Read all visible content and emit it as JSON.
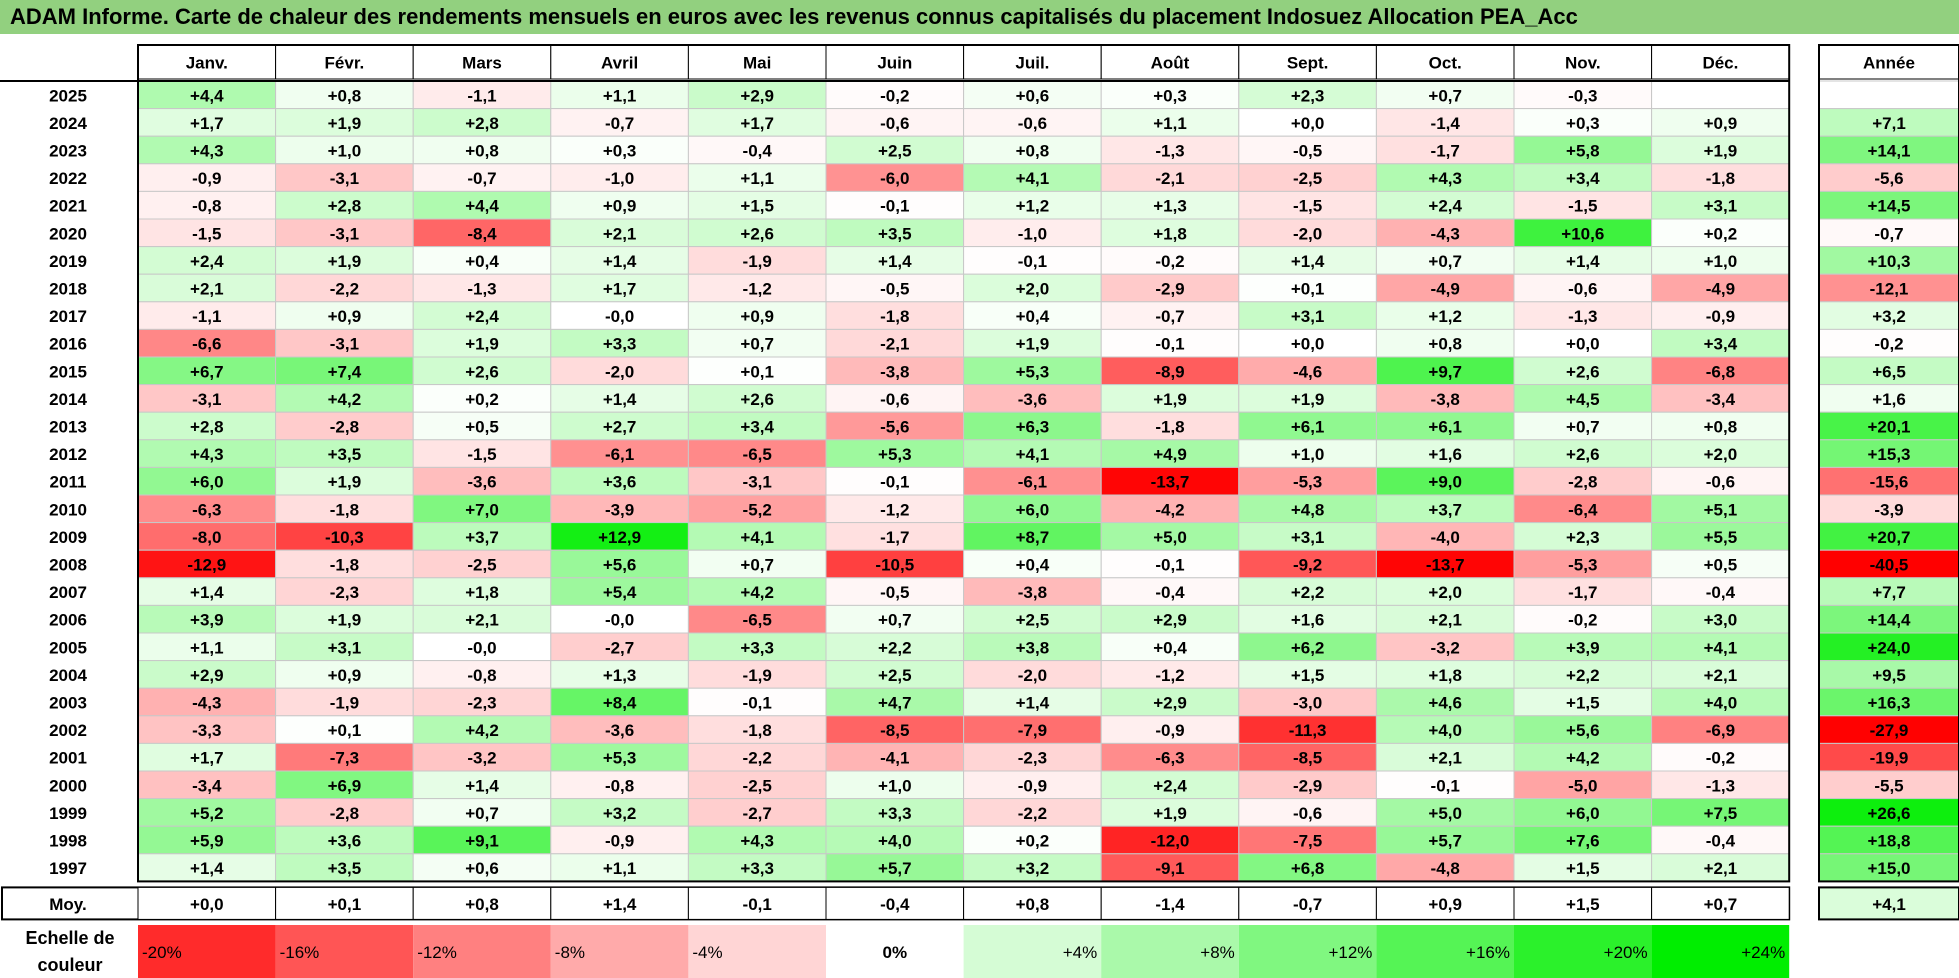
{
  "title": "ADAM Informe. Carte de chaleur des rendements mensuels en euros avec les revenus connus capitalisés du placement Indosuez Allocation PEA_Acc",
  "chart_data": {
    "type": "heatmap",
    "columns": [
      "Janv.",
      "Févr.",
      "Mars",
      "Avril",
      "Mai",
      "Juin",
      "Juil.",
      "Août",
      "Sept.",
      "Oct.",
      "Nov.",
      "Déc."
    ],
    "year_column_label": "Année",
    "rows": [
      {
        "year": "2025",
        "values": [
          4.4,
          0.8,
          -1.1,
          1.1,
          2.9,
          -0.2,
          0.6,
          0.3,
          2.3,
          0.7,
          -0.3,
          null
        ],
        "annual": null
      },
      {
        "year": "2024",
        "values": [
          1.7,
          1.9,
          2.8,
          -0.7,
          1.7,
          -0.6,
          -0.6,
          1.1,
          0.0,
          -1.4,
          0.3,
          0.9
        ],
        "annual": 7.1
      },
      {
        "year": "2023",
        "values": [
          4.3,
          1.0,
          0.8,
          0.3,
          -0.4,
          2.5,
          0.8,
          -1.3,
          -0.5,
          -1.7,
          5.8,
          1.9
        ],
        "annual": 14.1
      },
      {
        "year": "2022",
        "values": [
          -0.9,
          -3.1,
          -0.7,
          -1.0,
          1.1,
          -6.0,
          4.1,
          -2.1,
          -2.5,
          4.3,
          3.4,
          -1.8
        ],
        "annual": -5.6
      },
      {
        "year": "2021",
        "values": [
          -0.8,
          2.8,
          4.4,
          0.9,
          1.5,
          -0.1,
          1.2,
          1.3,
          -1.5,
          2.4,
          -1.5,
          3.1
        ],
        "annual": 14.5
      },
      {
        "year": "2020",
        "values": [
          -1.5,
          -3.1,
          -8.4,
          2.1,
          2.6,
          3.5,
          -1.0,
          1.8,
          -2.0,
          -4.3,
          10.6,
          0.2
        ],
        "annual": -0.7
      },
      {
        "year": "2019",
        "values": [
          2.4,
          1.9,
          0.4,
          1.4,
          -1.9,
          1.4,
          -0.1,
          -0.2,
          1.4,
          0.7,
          1.4,
          1.0
        ],
        "annual": 10.3
      },
      {
        "year": "2018",
        "values": [
          2.1,
          -2.2,
          -1.3,
          1.7,
          -1.2,
          -0.5,
          2.0,
          -2.9,
          0.1,
          -4.9,
          -0.6,
          -4.9
        ],
        "annual": -12.1
      },
      {
        "year": "2017",
        "values": [
          -1.1,
          0.9,
          2.4,
          -0.0,
          0.9,
          -1.8,
          0.4,
          -0.7,
          3.1,
          1.2,
          -1.3,
          -0.9
        ],
        "annual": 3.2
      },
      {
        "year": "2016",
        "values": [
          -6.6,
          -3.1,
          1.9,
          3.3,
          0.7,
          -2.1,
          1.9,
          -0.1,
          0.0,
          0.8,
          0.0,
          3.4
        ],
        "annual": -0.2
      },
      {
        "year": "2015",
        "values": [
          6.7,
          7.4,
          2.6,
          -2.0,
          0.1,
          -3.8,
          5.3,
          -8.9,
          -4.6,
          9.7,
          2.6,
          -6.8
        ],
        "annual": 6.5
      },
      {
        "year": "2014",
        "values": [
          -3.1,
          4.2,
          0.2,
          1.4,
          2.6,
          -0.6,
          -3.6,
          1.9,
          1.9,
          -3.8,
          4.5,
          -3.4
        ],
        "annual": 1.6
      },
      {
        "year": "2013",
        "values": [
          2.8,
          -2.8,
          0.5,
          2.7,
          3.4,
          -5.6,
          6.3,
          -1.8,
          6.1,
          6.1,
          0.7,
          0.8
        ],
        "annual": 20.1
      },
      {
        "year": "2012",
        "values": [
          4.3,
          3.5,
          -1.5,
          -6.1,
          -6.5,
          5.3,
          4.1,
          4.9,
          1.0,
          1.6,
          2.6,
          2.0
        ],
        "annual": 15.3
      },
      {
        "year": "2011",
        "values": [
          6.0,
          1.9,
          -3.6,
          3.6,
          -3.1,
          -0.1,
          -6.1,
          -13.7,
          -5.3,
          9.0,
          -2.8,
          -0.6
        ],
        "annual": -15.6
      },
      {
        "year": "2010",
        "values": [
          -6.3,
          -1.8,
          7.0,
          -3.9,
          -5.2,
          -1.2,
          6.0,
          -4.2,
          4.8,
          3.7,
          -6.4,
          5.1
        ],
        "annual": -3.9
      },
      {
        "year": "2009",
        "values": [
          -8.0,
          -10.3,
          3.7,
          12.9,
          4.1,
          -1.7,
          8.7,
          5.0,
          3.1,
          -4.0,
          2.3,
          5.5
        ],
        "annual": 20.7
      },
      {
        "year": "2008",
        "values": [
          -12.9,
          -1.8,
          -2.5,
          5.6,
          0.7,
          -10.5,
          0.4,
          -0.1,
          -9.2,
          -13.7,
          -5.3,
          0.5
        ],
        "annual": -40.5
      },
      {
        "year": "2007",
        "values": [
          1.4,
          -2.3,
          1.8,
          5.4,
          4.2,
          -0.5,
          -3.8,
          -0.4,
          2.2,
          2.0,
          -1.7,
          -0.4
        ],
        "annual": 7.7
      },
      {
        "year": "2006",
        "values": [
          3.9,
          1.9,
          2.1,
          -0.0,
          -6.5,
          0.7,
          2.5,
          2.9,
          1.6,
          2.1,
          -0.2,
          3.0
        ],
        "annual": 14.4
      },
      {
        "year": "2005",
        "values": [
          1.1,
          3.1,
          -0.0,
          -2.7,
          3.3,
          2.2,
          3.8,
          0.4,
          6.2,
          -3.2,
          3.9,
          4.1
        ],
        "annual": 24.0
      },
      {
        "year": "2004",
        "values": [
          2.9,
          0.9,
          -0.8,
          1.3,
          -1.9,
          2.5,
          -2.0,
          -1.2,
          1.5,
          1.8,
          2.2,
          2.1
        ],
        "annual": 9.5
      },
      {
        "year": "2003",
        "values": [
          -4.3,
          -1.9,
          -2.3,
          8.4,
          -0.1,
          4.7,
          1.4,
          2.9,
          -3.0,
          4.6,
          1.5,
          4.0
        ],
        "annual": 16.3
      },
      {
        "year": "2002",
        "values": [
          -3.3,
          0.1,
          4.2,
          -3.6,
          -1.8,
          -8.5,
          -7.9,
          -0.9,
          -11.3,
          4.0,
          5.6,
          -6.9
        ],
        "annual": -27.9
      },
      {
        "year": "2001",
        "values": [
          1.7,
          -7.3,
          -3.2,
          5.3,
          -2.2,
          -4.1,
          -2.3,
          -6.3,
          -8.5,
          2.1,
          4.2,
          -0.2
        ],
        "annual": -19.9
      },
      {
        "year": "2000",
        "values": [
          -3.4,
          6.9,
          1.4,
          -0.8,
          -2.5,
          1.0,
          -0.9,
          2.4,
          -2.9,
          -0.1,
          -5.0,
          -1.3
        ],
        "annual": -5.5
      },
      {
        "year": "1999",
        "values": [
          5.2,
          -2.8,
          0.7,
          3.2,
          -2.7,
          3.3,
          -2.2,
          1.9,
          -0.6,
          5.0,
          6.0,
          7.5
        ],
        "annual": 26.6
      },
      {
        "year": "1998",
        "values": [
          5.9,
          3.6,
          9.1,
          -0.9,
          4.3,
          4.0,
          0.2,
          -12.0,
          -7.5,
          5.7,
          7.6,
          -0.4
        ],
        "annual": 18.8
      },
      {
        "year": "1997",
        "values": [
          1.4,
          3.5,
          0.6,
          1.1,
          3.3,
          5.7,
          3.2,
          -9.1,
          6.8,
          -4.8,
          1.5,
          2.1
        ],
        "annual": 15.0
      }
    ],
    "average_row": {
      "label": "Moy.",
      "values": [
        0.0,
        0.1,
        0.8,
        1.4,
        -0.1,
        -0.4,
        0.8,
        -1.4,
        -0.7,
        0.9,
        1.5,
        0.7
      ],
      "annual": 4.1
    },
    "legend": {
      "label": "Echelle de couleur",
      "steps": [
        "-20%",
        "-16%",
        "-12%",
        "-8%",
        "-4%",
        "0%",
        "+4%",
        "+8%",
        "+12%",
        "+16%",
        "+20%",
        "+24%"
      ],
      "step_values": [
        -20,
        -16,
        -12,
        -8,
        -4,
        0,
        4,
        8,
        12,
        16,
        20,
        24
      ]
    },
    "colors": {
      "negative": "#ff0000",
      "positive": "#00ee00",
      "neutral": "#ffffff",
      "title_bar": "#92d07f"
    }
  }
}
